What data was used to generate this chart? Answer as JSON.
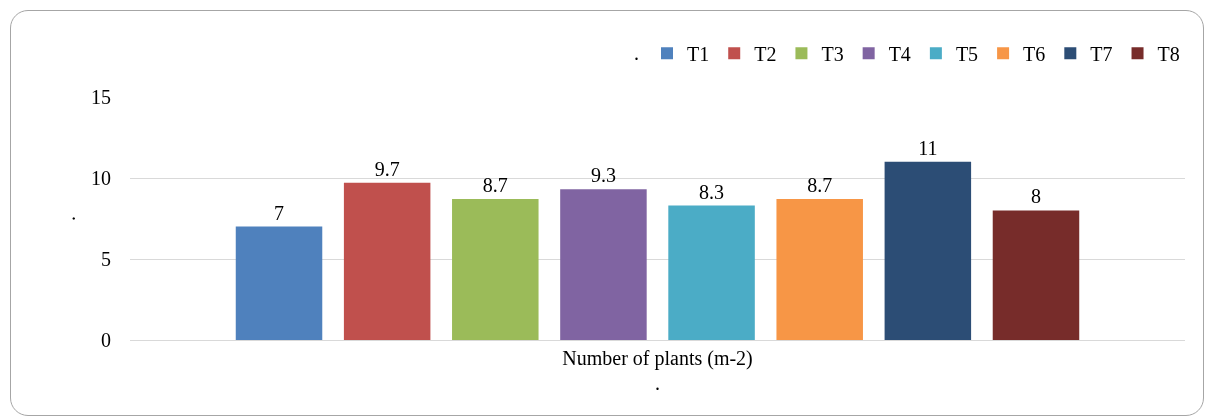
{
  "chart_data": {
    "type": "bar",
    "categories": [
      "Number of plants (m-2)"
    ],
    "series": [
      {
        "name": "T1",
        "color": "#4f81bd",
        "values": [
          7
        ]
      },
      {
        "name": "T2",
        "color": "#c0504d",
        "values": [
          9.7
        ]
      },
      {
        "name": "T3",
        "color": "#9bbb59",
        "values": [
          8.7
        ]
      },
      {
        "name": "T4",
        "color": "#8064a2",
        "values": [
          9.3
        ]
      },
      {
        "name": "T5",
        "color": "#4bacc6",
        "values": [
          8.3
        ]
      },
      {
        "name": "T6",
        "color": "#f79646",
        "values": [
          8.7
        ]
      },
      {
        "name": "T7",
        "color": "#2c4d75",
        "values": [
          11
        ]
      },
      {
        "name": "T8",
        "color": "#772c2a",
        "values": [
          8
        ]
      }
    ],
    "ylim": [
      0,
      15
    ],
    "yticks": [
      0,
      5,
      10,
      15
    ],
    "grid": "y",
    "legend": "top right",
    "legend_title": ".",
    "ylabel": ".",
    "xlabel": ".",
    "data_labels": true
  }
}
